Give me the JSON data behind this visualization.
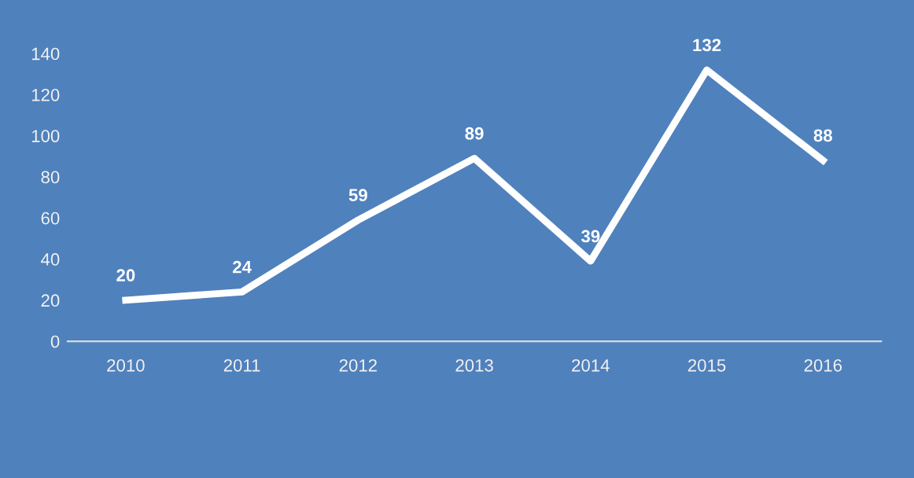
{
  "chart_data": {
    "type": "line",
    "categories": [
      "2010",
      "2011",
      "2012",
      "2013",
      "2014",
      "2015",
      "2016"
    ],
    "series": [
      {
        "color": "#ffffff",
        "values": [
          20,
          24,
          59,
          89,
          39,
          132,
          88
        ]
      }
    ],
    "ylim": [
      0,
      140
    ],
    "yticks": [
      0,
      20,
      40,
      60,
      80,
      100,
      120,
      140
    ],
    "grid": false,
    "legend": false,
    "data_labels": true,
    "marker": "none",
    "line_style": "solid"
  }
}
